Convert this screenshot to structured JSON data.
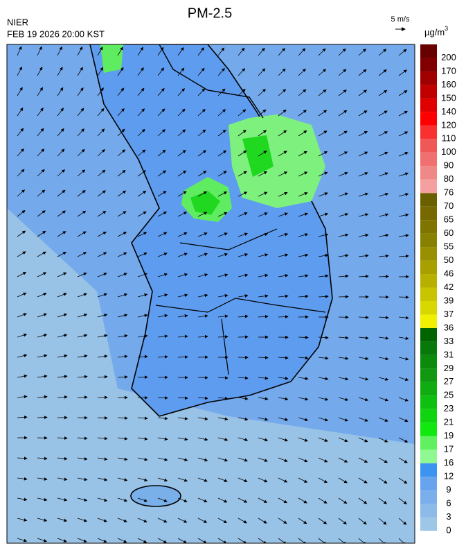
{
  "header": {
    "title": "PM-2.5",
    "agency": "NIER",
    "timestamp": "FEB 19 2026 20:00 KST",
    "wind_scale": "5 m/s"
  },
  "colorbar": {
    "unit": "µg/m",
    "unit_exponent": "3",
    "levels": [
      0,
      3,
      6,
      9,
      12,
      16,
      17,
      19,
      21,
      23,
      25,
      27,
      29,
      31,
      33,
      36,
      37,
      39,
      42,
      46,
      50,
      55,
      60,
      65,
      70,
      76,
      80,
      90,
      100,
      110,
      120,
      140,
      150,
      160,
      170,
      200
    ],
    "colors": [
      "#9ec6e6",
      "#8cbbea",
      "#7aafec",
      "#68a4ee",
      "#3c94f0",
      "#90f890",
      "#60f060",
      "#10e810",
      "#10d410",
      "#10c010",
      "#10ac10",
      "#109810",
      "#0c8a0c",
      "#087808",
      "#006400",
      "#f0f000",
      "#d8d800",
      "#c8c400",
      "#b8b000",
      "#a8a000",
      "#989000",
      "#888000",
      "#807400",
      "#786800",
      "#6b6000",
      "#f4a0a0",
      "#f08888",
      "#f07070",
      "#f05858",
      "#f83030",
      "#ff0000",
      "#e00000",
      "#c00000",
      "#a00000",
      "#800000",
      "#680000"
    ]
  }
}
